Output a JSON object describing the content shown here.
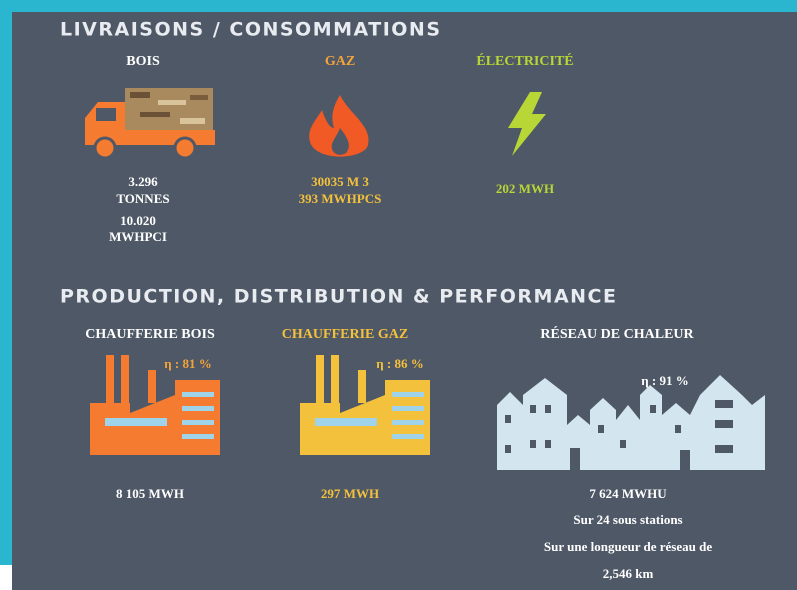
{
  "deliveries": {
    "title": "LIVRAISONS / CONSOMMATIONS",
    "items": [
      {
        "label": "BOIS",
        "lines": [
          "3.296",
          "TONNES",
          "10.020",
          "MWHPCI"
        ]
      },
      {
        "label": "GAZ",
        "lines": [
          "30035 M 3",
          "393 MWHPCS"
        ]
      },
      {
        "label": "ÉLECTRICITÉ",
        "lines": [
          "202 MWH"
        ]
      }
    ]
  },
  "production": {
    "title": "PRODUCTION, DISTRIBUTION & PERFORMANCE",
    "items": [
      {
        "label": "CHAUFFERIE BOIS",
        "efficiency": "η : 81 %",
        "lines": [
          "8 105 MWH"
        ]
      },
      {
        "label": "CHAUFFERIE GAZ",
        "efficiency": "η : 86 %",
        "lines": [
          "297 MWH"
        ]
      },
      {
        "label": "RÉSEAU DE CHALEUR",
        "efficiency": "η : 91 %",
        "lines": [
          "7 624 MWHU",
          "Sur 24 sous stations",
          "Sur une longueur de réseau de",
          "2,546 km"
        ]
      }
    ]
  }
}
